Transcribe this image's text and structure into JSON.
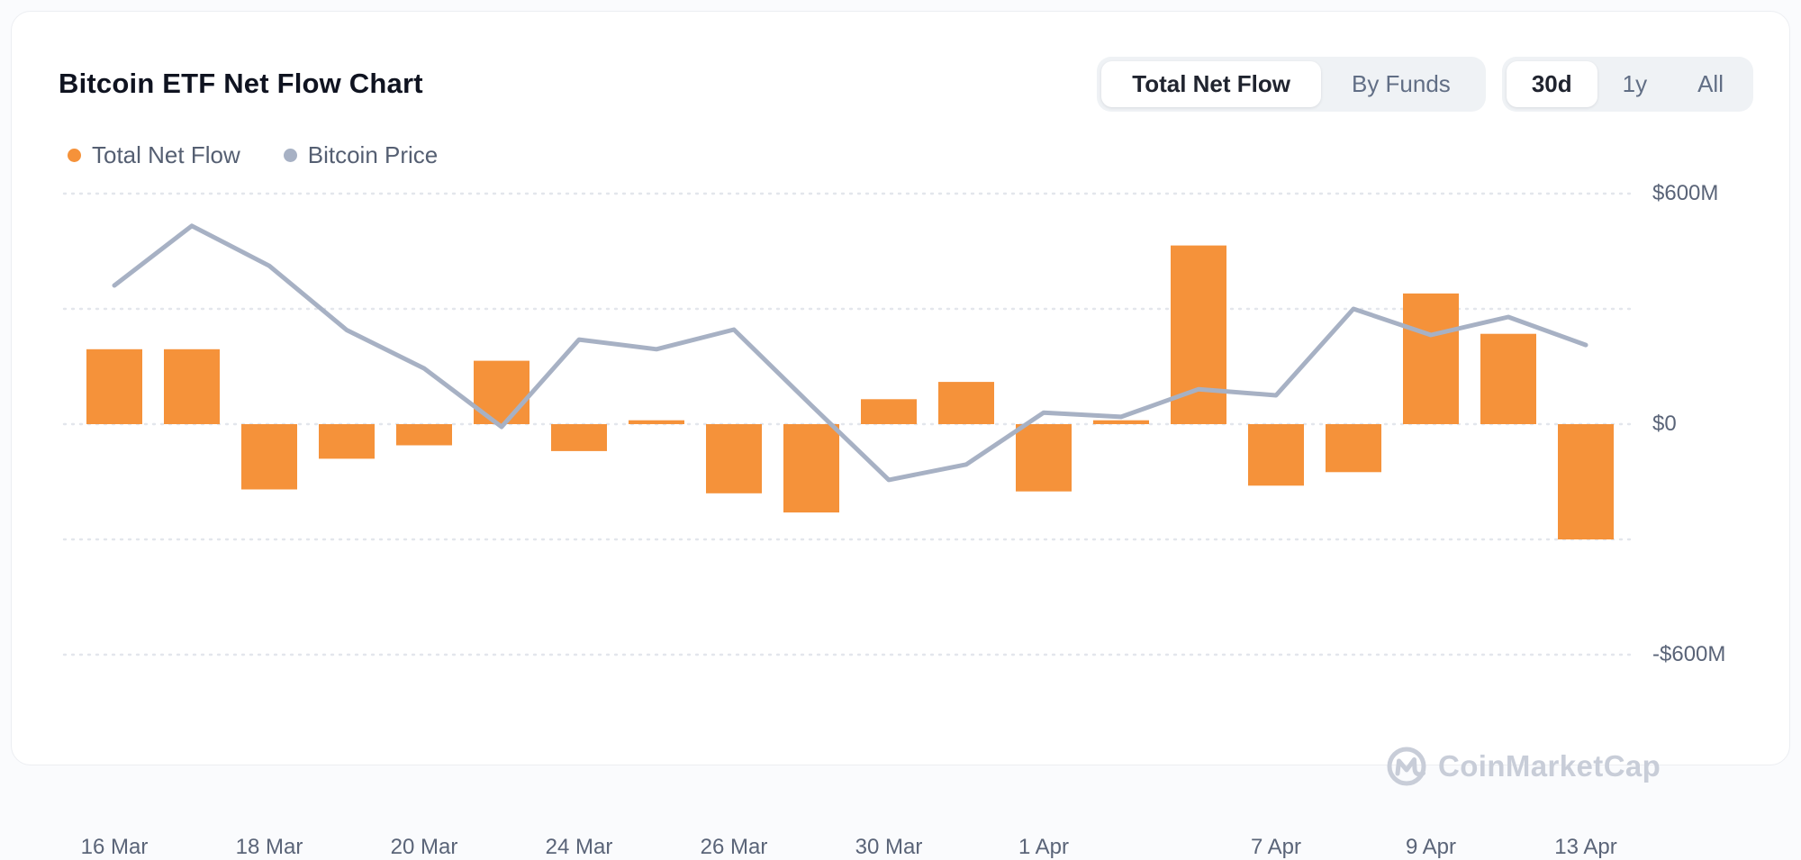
{
  "header": {
    "title": "Bitcoin ETF Net Flow Chart",
    "view_toggle": {
      "options": [
        "Total Net Flow",
        "By Funds"
      ],
      "active": "Total Net Flow"
    },
    "range_toggle": {
      "options": [
        "30d",
        "1y",
        "All"
      ],
      "active": "30d"
    }
  },
  "legend": [
    {
      "label": "Total Net Flow",
      "color": "#f5923a"
    },
    {
      "label": "Bitcoin Price",
      "color": "#a7b1c4"
    }
  ],
  "watermark": {
    "text": "CoinMarketCap"
  },
  "colors": {
    "bar": "#f5923a",
    "price_line": "#a7b1c4",
    "gridline": "#e3e6ec",
    "axis_text": "#5a6478",
    "title_text": "#0f1320",
    "card_background": "#ffffff"
  },
  "chart_data": {
    "type": "bar+line",
    "unit": "USD million",
    "grid": "horizontal-dotted",
    "legend_position": "top-left",
    "y_axis": {
      "tick_labels": [
        "$600M",
        "$0",
        "-$600M"
      ],
      "tick_values": [
        600,
        0,
        -600
      ],
      "gridlines": [
        600,
        300,
        0,
        -300,
        -600
      ],
      "range": [
        -600,
        600
      ]
    },
    "x_tick_labels": [
      "16 Mar",
      "18 Mar",
      "20 Mar",
      "24 Mar",
      "26 Mar",
      "30 Mar",
      "1 Apr",
      "7 Apr",
      "9 Apr",
      "13 Apr"
    ],
    "bars": {
      "name": "Total Net Flow",
      "color": "#f5923a",
      "points": [
        {
          "label": "16 Mar",
          "value": 195
        },
        {
          "label": "",
          "value": 195
        },
        {
          "label": "18 Mar",
          "value": -170
        },
        {
          "label": "",
          "value": -90
        },
        {
          "label": "20 Mar",
          "value": -55
        },
        {
          "label": "",
          "value": 165
        },
        {
          "label": "24 Mar",
          "value": -70
        },
        {
          "label": "",
          "value": 10
        },
        {
          "label": "26 Mar",
          "value": -180
        },
        {
          "label": "",
          "value": -230
        },
        {
          "label": "30 Mar",
          "value": 65
        },
        {
          "label": "",
          "value": 110
        },
        {
          "label": "1 Apr",
          "value": -175
        },
        {
          "label": "",
          "value": 10
        },
        {
          "label": "",
          "value": 465
        },
        {
          "label": "7 Apr",
          "value": -160
        },
        {
          "label": "",
          "value": -125
        },
        {
          "label": "9 Apr",
          "value": 340
        },
        {
          "label": "",
          "value": 235
        },
        {
          "label": "13 Apr",
          "value": -300
        }
      ]
    },
    "line": {
      "name": "Bitcoin Price",
      "color": "#a7b1c4",
      "note": "No price axis is shown; values are the line's plotted positions expressed in left-axis $M-equivalent units",
      "values": [
        361,
        516,
        412,
        245,
        145,
        -7,
        220,
        195,
        246,
        49,
        -145,
        -105,
        30,
        19,
        91,
        75,
        300,
        232,
        279,
        206
      ]
    }
  }
}
